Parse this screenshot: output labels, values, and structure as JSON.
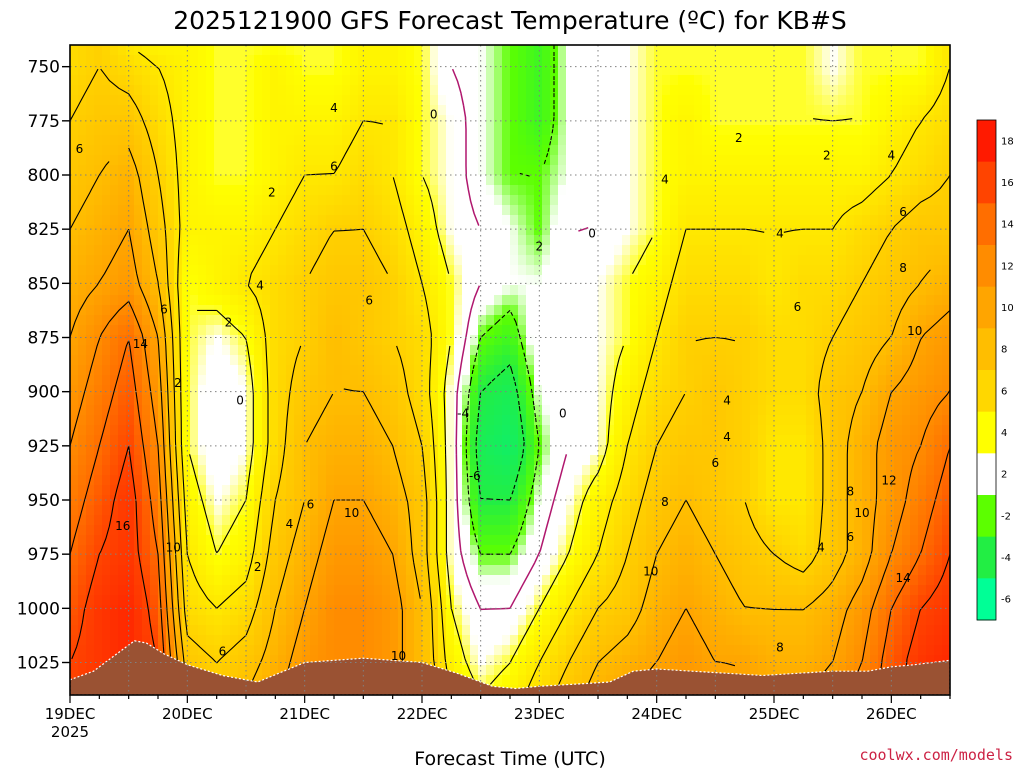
{
  "chart_data": {
    "type": "heatmap",
    "title": "2025121900 GFS Forecast Temperature (ºC) for KB#S",
    "xlabel": "Forecast Time (UTC)",
    "ylabel": "",
    "ylim": [
      1040,
      740
    ],
    "xlim": [
      0,
      7.5
    ],
    "x_ticks": [
      {
        "v": 0,
        "label": "19DEC",
        "sub": "2025"
      },
      {
        "v": 1,
        "label": "20DEC",
        "sub": ""
      },
      {
        "v": 2,
        "label": "21DEC",
        "sub": ""
      },
      {
        "v": 3,
        "label": "22DEC",
        "sub": ""
      },
      {
        "v": 4,
        "label": "23DEC",
        "sub": ""
      },
      {
        "v": 5,
        "label": "24DEC",
        "sub": ""
      },
      {
        "v": 6,
        "label": "25DEC",
        "sub": ""
      },
      {
        "v": 7,
        "label": "26DEC",
        "sub": ""
      }
    ],
    "y_ticks": [
      750,
      775,
      800,
      825,
      850,
      875,
      900,
      925,
      950,
      975,
      1000,
      1025
    ],
    "colorbar": {
      "levels": [
        -6,
        -4,
        -2,
        2,
        4,
        6,
        8,
        10,
        12,
        14,
        16,
        18
      ],
      "labels": [
        "18",
        "16",
        "14",
        "12",
        "10",
        "8",
        "6",
        "4",
        "2",
        "-2",
        "-4",
        "-6"
      ],
      "colors": [
        "#ff1a00",
        "#ff4400",
        "#ff6e00",
        "#ff8c00",
        "#ffa500",
        "#ffbe00",
        "#ffd700",
        "#ffff00",
        "#ffffff",
        "#5cff00",
        "#22ee44",
        "#00ff96"
      ]
    },
    "color_scale": {
      "min": -8,
      "max": 19,
      "stops": [
        {
          "t": -8,
          "c": "#00ee88"
        },
        {
          "t": -4,
          "c": "#22ee44"
        },
        {
          "t": -2,
          "c": "#5cff00"
        },
        {
          "t": -1,
          "c": "#ffffff"
        },
        {
          "t": 1,
          "c": "#ffffff"
        },
        {
          "t": 2.2,
          "c": "#ffff00"
        },
        {
          "t": 4,
          "c": "#ffe800"
        },
        {
          "t": 6,
          "c": "#ffd000"
        },
        {
          "t": 8,
          "c": "#ffbe00"
        },
        {
          "t": 10,
          "c": "#ffa500"
        },
        {
          "t": 12,
          "c": "#ff8c00"
        },
        {
          "t": 14,
          "c": "#ff6e00"
        },
        {
          "t": 16,
          "c": "#ff4400"
        },
        {
          "t": 19,
          "c": "#ff1a00"
        }
      ]
    },
    "temperature_grid": {
      "pressure_levels": [
        740,
        750,
        775,
        800,
        825,
        850,
        875,
        900,
        925,
        950,
        975,
        1000,
        1025,
        1040
      ],
      "times": [
        0.0,
        0.25,
        0.5,
        0.75,
        1.0,
        1.25,
        1.5,
        1.75,
        2.0,
        2.25,
        2.5,
        2.75,
        3.0,
        3.25,
        3.5,
        3.75,
        4.0,
        4.25,
        4.5,
        4.75,
        5.0,
        5.25,
        5.5,
        5.75,
        6.0,
        6.25,
        6.5,
        6.75,
        7.0,
        7.25,
        7.5
      ],
      "values": [
        [
          5,
          6,
          4,
          3,
          3,
          2,
          2,
          2,
          2,
          2,
          3,
          3,
          2,
          0,
          -1,
          -2,
          -3,
          -1,
          0,
          1,
          2,
          2,
          2,
          2,
          2,
          2,
          1,
          2,
          2,
          2,
          4
        ],
        [
          5,
          6,
          5,
          4,
          3,
          2,
          2,
          3,
          2,
          2,
          3,
          3,
          2,
          0,
          -1,
          -2,
          -3,
          -1,
          0,
          1,
          2,
          2,
          2,
          2,
          2,
          2,
          1,
          2,
          2,
          2,
          4
        ],
        [
          6,
          7,
          7,
          5,
          3,
          2,
          2,
          3,
          3,
          3,
          4,
          4,
          2,
          1,
          -1,
          -2,
          -3,
          -1,
          0,
          1,
          2,
          3,
          2,
          2,
          2,
          2,
          2,
          2,
          3,
          4,
          5
        ],
        [
          7,
          8,
          9,
          6,
          3,
          2,
          2,
          3,
          4,
          4,
          5,
          4,
          2,
          1,
          -1,
          -2,
          -2,
          -1,
          0,
          1,
          2,
          3,
          3,
          3,
          3,
          3,
          3,
          3,
          4,
          5,
          6
        ],
        [
          8,
          9,
          10,
          7,
          3,
          3,
          3,
          4,
          5,
          6,
          6,
          5,
          3,
          1,
          0,
          -1,
          -2,
          0,
          0,
          1,
          2,
          4,
          4,
          4,
          4,
          4,
          4,
          5,
          6,
          7,
          7
        ],
        [
          9,
          10,
          11,
          8,
          2,
          3,
          4,
          5,
          6,
          7,
          7,
          6,
          4,
          2,
          0,
          -1,
          -1,
          0,
          1,
          2,
          3,
          5,
          5,
          5,
          4,
          5,
          5,
          6,
          7,
          8,
          9
        ],
        [
          10,
          12,
          14,
          10,
          2,
          1,
          2,
          5,
          6,
          8,
          7,
          6,
          5,
          2,
          -2,
          -3,
          0,
          0,
          1,
          2,
          4,
          6,
          6,
          6,
          5,
          5,
          6,
          7,
          8,
          10,
          11
        ],
        [
          11,
          13,
          15,
          11,
          2,
          0,
          1,
          5,
          7,
          8,
          8,
          7,
          5,
          1,
          -4,
          -5,
          -1,
          0,
          1,
          3,
          5,
          6,
          7,
          6,
          5,
          5,
          7,
          8,
          10,
          11,
          12
        ],
        [
          12,
          14,
          16,
          12,
          2,
          0,
          1,
          5,
          8,
          9,
          9,
          8,
          6,
          1,
          -5,
          -6,
          -2,
          0,
          1,
          4,
          6,
          7,
          7,
          6,
          4,
          4,
          7,
          9,
          11,
          12,
          14
        ],
        [
          13,
          15,
          17,
          13,
          3,
          1,
          2,
          6,
          8,
          10,
          10,
          9,
          7,
          1,
          -4,
          -4,
          -1,
          1,
          3,
          5,
          7,
          8,
          7,
          6,
          4,
          4,
          7,
          9,
          11,
          13,
          15
        ],
        [
          14,
          16,
          17,
          14,
          4,
          2,
          3,
          7,
          9,
          11,
          11,
          10,
          7,
          1,
          -2,
          -2,
          0,
          2,
          4,
          6,
          8,
          9,
          8,
          7,
          6,
          5,
          7,
          9,
          12,
          14,
          16
        ],
        [
          15,
          17,
          18,
          15,
          5,
          4,
          5,
          8,
          10,
          12,
          12,
          11,
          8,
          2,
          0,
          0,
          2,
          4,
          6,
          7,
          9,
          10,
          9,
          8,
          8,
          8,
          9,
          11,
          14,
          16,
          17
        ],
        [
          16,
          17,
          18,
          16,
          7,
          6,
          7,
          9,
          11,
          12,
          12,
          11,
          8,
          3,
          1,
          2,
          4,
          6,
          8,
          9,
          10,
          11,
          10,
          10,
          9,
          9,
          10,
          12,
          15,
          17,
          18
        ],
        [
          16,
          17,
          18,
          16,
          8,
          7,
          8,
          10,
          11,
          12,
          12,
          11,
          9,
          4,
          2,
          3,
          5,
          7,
          9,
          10,
          11,
          11,
          11,
          10,
          10,
          10,
          11,
          13,
          15,
          17,
          18
        ]
      ]
    },
    "terrain_surface_pressure": [
      {
        "x": 0.0,
        "p": 1033
      },
      {
        "x": 0.2,
        "p": 1029
      },
      {
        "x": 0.4,
        "p": 1021
      },
      {
        "x": 0.55,
        "p": 1015
      },
      {
        "x": 0.65,
        "p": 1016
      },
      {
        "x": 0.8,
        "p": 1021
      },
      {
        "x": 1.0,
        "p": 1026
      },
      {
        "x": 1.3,
        "p": 1031
      },
      {
        "x": 1.6,
        "p": 1034
      },
      {
        "x": 2.0,
        "p": 1025
      },
      {
        "x": 2.5,
        "p": 1023
      },
      {
        "x": 3.0,
        "p": 1025
      },
      {
        "x": 3.3,
        "p": 1030
      },
      {
        "x": 3.6,
        "p": 1036
      },
      {
        "x": 3.8,
        "p": 1037
      },
      {
        "x": 4.0,
        "p": 1036
      },
      {
        "x": 4.3,
        "p": 1035
      },
      {
        "x": 4.6,
        "p": 1034
      },
      {
        "x": 4.8,
        "p": 1029
      },
      {
        "x": 5.0,
        "p": 1028
      },
      {
        "x": 5.3,
        "p": 1029
      },
      {
        "x": 5.6,
        "p": 1030
      },
      {
        "x": 5.9,
        "p": 1031
      },
      {
        "x": 6.2,
        "p": 1030
      },
      {
        "x": 6.5,
        "p": 1029
      },
      {
        "x": 6.8,
        "p": 1029
      },
      {
        "x": 7.0,
        "p": 1027
      },
      {
        "x": 7.2,
        "p": 1026
      },
      {
        "x": 7.5,
        "p": 1024
      }
    ],
    "contour_labels": [
      {
        "t": 0.08,
        "p": 788,
        "text": "6"
      },
      {
        "t": 0.45,
        "p": 962,
        "text": "16"
      },
      {
        "t": 0.6,
        "p": 878,
        "text": "14"
      },
      {
        "t": 0.8,
        "p": 862,
        "text": "6"
      },
      {
        "t": 0.92,
        "p": 896,
        "text": "2"
      },
      {
        "t": 0.88,
        "p": 972,
        "text": "10"
      },
      {
        "t": 1.35,
        "p": 868,
        "text": "2"
      },
      {
        "t": 1.45,
        "p": 904,
        "text": "0"
      },
      {
        "t": 1.62,
        "p": 851,
        "text": "4"
      },
      {
        "t": 1.72,
        "p": 808,
        "text": "2"
      },
      {
        "t": 1.87,
        "p": 961,
        "text": "4"
      },
      {
        "t": 1.6,
        "p": 981,
        "text": "2"
      },
      {
        "t": 1.3,
        "p": 1020,
        "text": "6"
      },
      {
        "t": 2.05,
        "p": 952,
        "text": "6"
      },
      {
        "t": 2.25,
        "p": 769,
        "text": "4"
      },
      {
        "t": 2.25,
        "p": 796,
        "text": "6"
      },
      {
        "t": 2.55,
        "p": 858,
        "text": "6"
      },
      {
        "t": 2.4,
        "p": 956,
        "text": "10"
      },
      {
        "t": 2.8,
        "p": 1022,
        "text": "10"
      },
      {
        "t": 3.1,
        "p": 772,
        "text": "0"
      },
      {
        "t": 3.35,
        "p": 910,
        "text": "-4"
      },
      {
        "t": 3.45,
        "p": 939,
        "text": "-6"
      },
      {
        "t": 4.0,
        "p": 833,
        "text": "2"
      },
      {
        "t": 4.45,
        "p": 827,
        "text": "0"
      },
      {
        "t": 4.2,
        "p": 910,
        "text": "0"
      },
      {
        "t": 5.07,
        "p": 802,
        "text": "4"
      },
      {
        "t": 5.07,
        "p": 951,
        "text": "8"
      },
      {
        "t": 4.95,
        "p": 983,
        "text": "10"
      },
      {
        "t": 5.7,
        "p": 783,
        "text": "2"
      },
      {
        "t": 5.6,
        "p": 921,
        "text": "4"
      },
      {
        "t": 5.5,
        "p": 933,
        "text": "6"
      },
      {
        "t": 5.6,
        "p": 904,
        "text": "4"
      },
      {
        "t": 6.05,
        "p": 827,
        "text": "4"
      },
      {
        "t": 6.2,
        "p": 861,
        "text": "6"
      },
      {
        "t": 6.45,
        "p": 791,
        "text": "2"
      },
      {
        "t": 6.65,
        "p": 946,
        "text": "8"
      },
      {
        "t": 6.65,
        "p": 967,
        "text": "6"
      },
      {
        "t": 6.4,
        "p": 972,
        "text": "4"
      },
      {
        "t": 7.0,
        "p": 791,
        "text": "4"
      },
      {
        "t": 7.1,
        "p": 817,
        "text": "6"
      },
      {
        "t": 7.1,
        "p": 843,
        "text": "8"
      },
      {
        "t": 7.2,
        "p": 872,
        "text": "10"
      },
      {
        "t": 6.98,
        "p": 941,
        "text": "12"
      },
      {
        "t": 6.75,
        "p": 956,
        "text": "10"
      },
      {
        "t": 7.1,
        "p": 986,
        "text": "14"
      },
      {
        "t": 6.05,
        "p": 1018,
        "text": "8"
      }
    ]
  },
  "credit": "coolwx.com/models",
  "colors": {
    "terrain": "#9a5233",
    "credit": "#cc2244",
    "zero_contour": "#b0176e",
    "grid": "#808080"
  }
}
